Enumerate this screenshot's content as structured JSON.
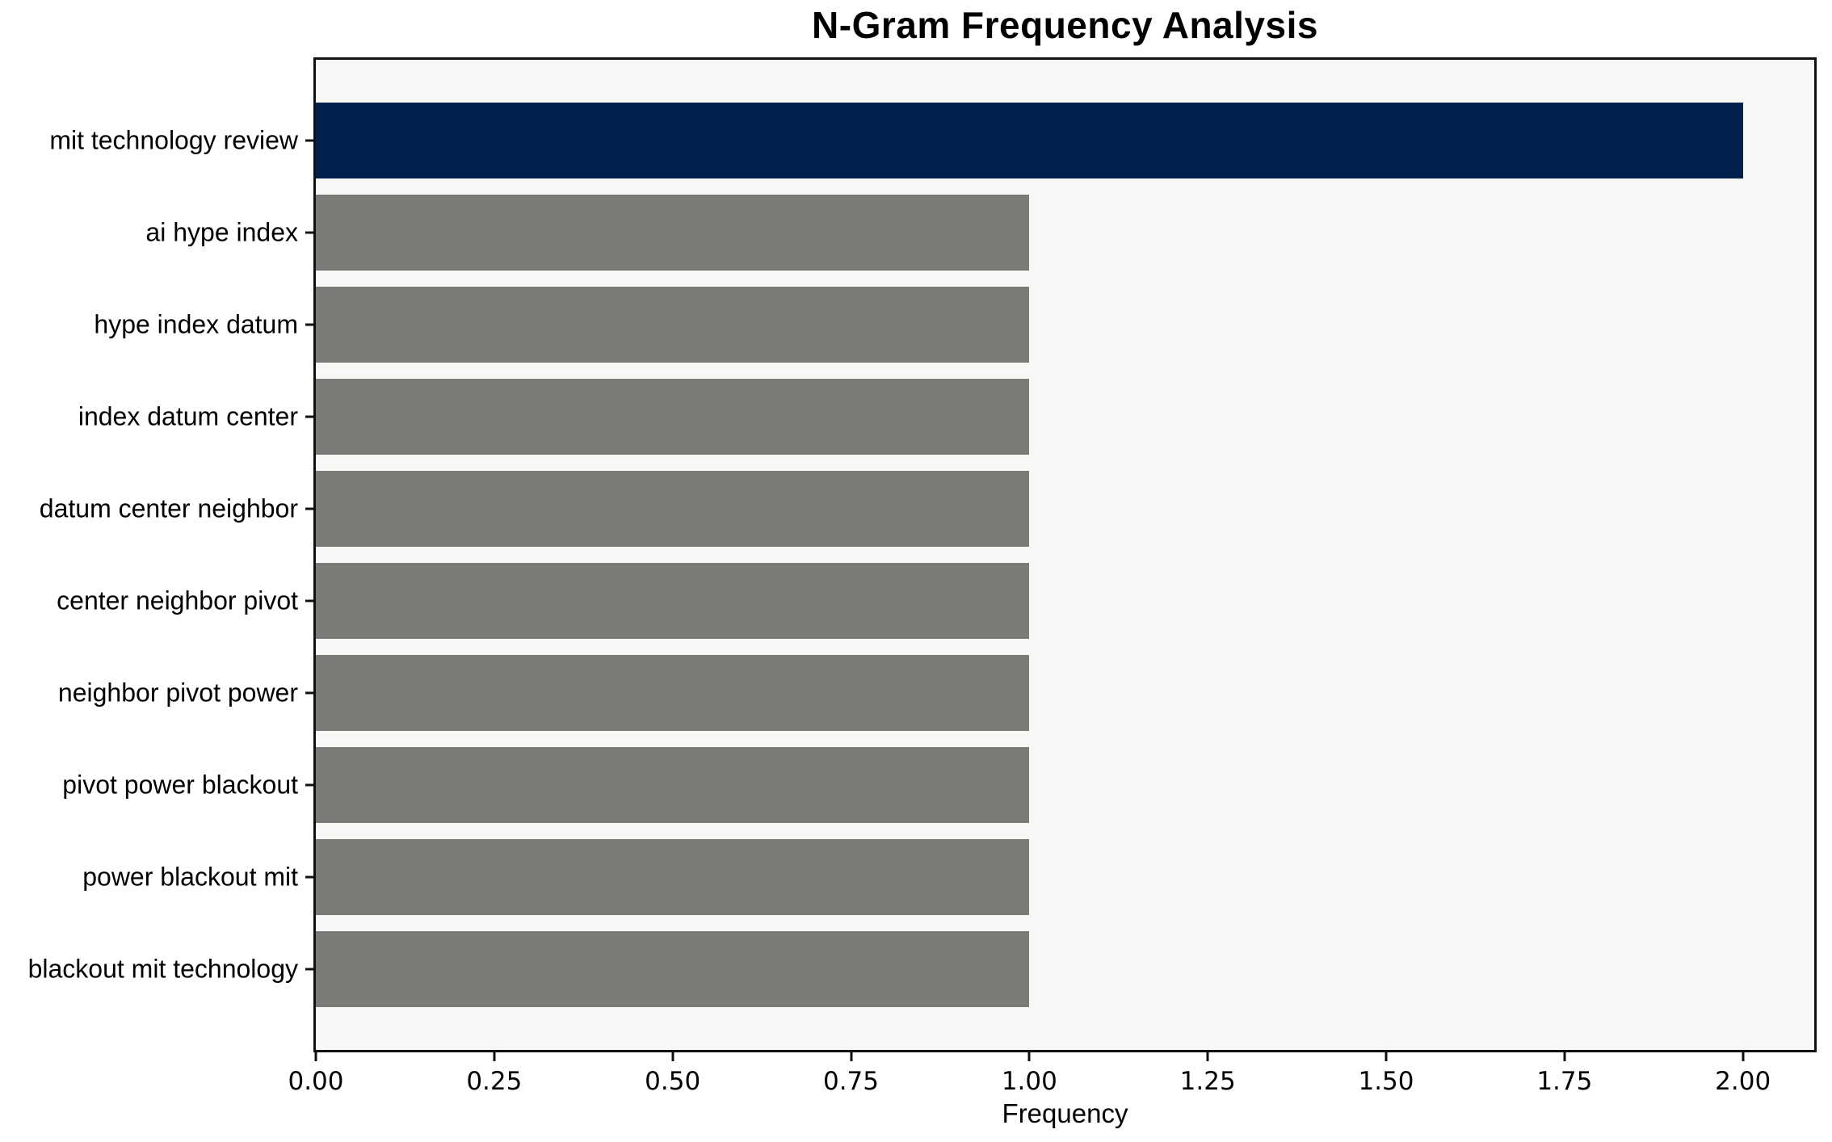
{
  "title": "N-Gram Frequency Analysis",
  "chart_data": {
    "type": "bar",
    "orientation": "horizontal",
    "title": "N-Gram Frequency Analysis",
    "categories": [
      "mit technology review",
      "ai hype index",
      "hype index datum",
      "index datum center",
      "datum center neighbor",
      "center neighbor pivot",
      "neighbor pivot power",
      "pivot power blackout",
      "power blackout mit",
      "blackout mit technology"
    ],
    "values": [
      2,
      1,
      1,
      1,
      1,
      1,
      1,
      1,
      1,
      1
    ],
    "xlabel": "Frequency",
    "ylabel": "",
    "xlim": [
      0,
      2.1
    ],
    "xticks": [
      0,
      0.25,
      0.5,
      0.75,
      1.0,
      1.25,
      1.5,
      1.75,
      2.0
    ],
    "xtick_labels": [
      "0.00",
      "0.25",
      "0.50",
      "0.75",
      "1.00",
      "1.25",
      "1.50",
      "1.75",
      "2.00"
    ],
    "grid": false,
    "legend_position": "none",
    "colors": {
      "highlight_bar": "#02214d",
      "default_bar": "#7b7a77",
      "plot_background": "#f7f7f5",
      "figure_background": "#ffffff",
      "spine": "#111111",
      "text": "#000000"
    },
    "highlight_index": 0
  }
}
